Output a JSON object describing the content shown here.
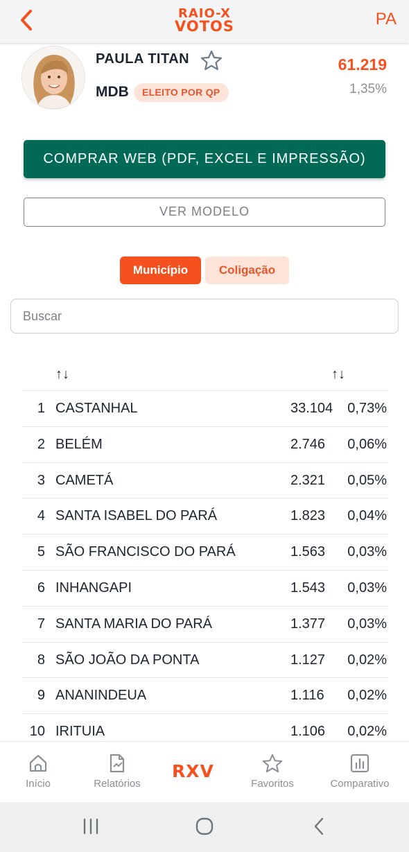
{
  "header": {
    "logo_line1": "RAIO-X",
    "logo_line2": "VOTOS",
    "state": "PA",
    "back_icon": "chevron-left-icon"
  },
  "candidate": {
    "name": "PAULA TITAN",
    "party": "MDB",
    "status_badge": "ELEITO POR QP",
    "votes": "61.219",
    "percent": "1,35%",
    "favorite_icon": "star-outline-icon"
  },
  "actions": {
    "buy_label": "COMPRAR WEB (PDF, EXCEL E IMPRESSÃO)",
    "model_label": "VER MODELO"
  },
  "tabs": [
    {
      "label": "Município",
      "active": true
    },
    {
      "label": "Coligação",
      "active": false
    }
  ],
  "search": {
    "placeholder": "Buscar",
    "value": ""
  },
  "table": {
    "sort_icon_text": "↑↓",
    "rows": [
      {
        "rank": "1",
        "city": "CASTANHAL",
        "votes": "33.104",
        "percent": "0,73%"
      },
      {
        "rank": "2",
        "city": "BELÉM",
        "votes": "2.746",
        "percent": "0,06%"
      },
      {
        "rank": "3",
        "city": "CAMETÁ",
        "votes": "2.321",
        "percent": "0,05%"
      },
      {
        "rank": "4",
        "city": "SANTA ISABEL DO PARÁ",
        "votes": "1.823",
        "percent": "0,04%"
      },
      {
        "rank": "5",
        "city": "SÃO FRANCISCO DO PARÁ",
        "votes": "1.563",
        "percent": "0,03%"
      },
      {
        "rank": "6",
        "city": "INHANGAPI",
        "votes": "1.543",
        "percent": "0,03%"
      },
      {
        "rank": "7",
        "city": "SANTA MARIA DO PARÁ",
        "votes": "1.377",
        "percent": "0,03%"
      },
      {
        "rank": "8",
        "city": "SÃO JOÃO DA PONTA",
        "votes": "1.127",
        "percent": "0,02%"
      },
      {
        "rank": "9",
        "city": "ANANINDEUA",
        "votes": "1.116",
        "percent": "0,02%"
      },
      {
        "rank": "10",
        "city": "IRITUIA",
        "votes": "1.106",
        "percent": "0,02%"
      }
    ]
  },
  "bottom_nav": {
    "items": [
      {
        "label": "Início",
        "icon": "home-icon"
      },
      {
        "label": "Relatórios",
        "icon": "report-icon"
      },
      {
        "label": "RXV",
        "icon": "rxv-logo"
      },
      {
        "label": "Favoritos",
        "icon": "star-icon"
      },
      {
        "label": "Comparativo",
        "icon": "bar-chart-icon"
      }
    ]
  },
  "colors": {
    "accent": "#f4511e",
    "primary_button": "#006a56",
    "badge_bg": "#fde3d8",
    "muted_text": "#8a9096"
  }
}
